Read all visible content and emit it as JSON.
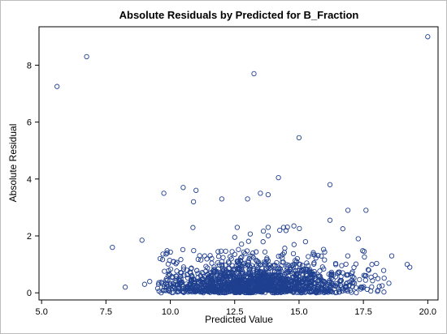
{
  "chart_data": {
    "type": "scatter",
    "title": "Absolute Residuals by Predicted for B_Fraction",
    "xlabel": "Predicted Value",
    "ylabel": "Absolute Residual",
    "xlim": [
      4.9,
      20.4
    ],
    "ylim": [
      -0.25,
      9.35
    ],
    "xticks": [
      5.0,
      7.5,
      10.0,
      12.5,
      15.0,
      17.5,
      20.0
    ],
    "xtick_labels": [
      "5.0",
      "7.5",
      "10.0",
      "12.5",
      "15.0",
      "17.5",
      "20.0"
    ],
    "yticks": [
      0,
      2,
      4,
      6,
      8
    ],
    "ytick_labels": [
      "0",
      "2",
      "4",
      "6",
      "8"
    ],
    "marker": "open-circle",
    "marker_color": "#1f3f8f",
    "grid": false,
    "legend": "none",
    "outliers": {
      "x": [
        5.6,
        6.75,
        13.25,
        15.0,
        20.0,
        14.2,
        16.2,
        10.5,
        13.5,
        9.75,
        11.0,
        10.9,
        12.0,
        13.0,
        13.8,
        16.9,
        17.6,
        7.75,
        8.9,
        12.6,
        13.8,
        14.25,
        14.4,
        14.8,
        16.2,
        16.7,
        17.8,
        18.6,
        19.2,
        19.3,
        8.25,
        9.0,
        10.0,
        17.3,
        9.2
      ],
      "y": [
        7.25,
        8.3,
        7.7,
        5.45,
        9.0,
        4.05,
        3.8,
        3.7,
        3.5,
        3.5,
        3.6,
        3.2,
        3.3,
        3.3,
        3.45,
        2.9,
        2.9,
        1.6,
        1.85,
        2.3,
        2.3,
        2.2,
        2.3,
        2.35,
        2.55,
        2.25,
        0.55,
        1.3,
        1.0,
        0.9,
        0.2,
        0.3,
        0.3,
        1.9,
        0.4
      ]
    },
    "bulk": {
      "n": 1500,
      "x_center": 13.3,
      "x_spread": 2.0,
      "x_range": [
        9.5,
        18.5
      ],
      "y_typical_max": 1.5,
      "y_sparse_max": 2.4
    }
  },
  "colors": {
    "marker": "#1f3f8f",
    "axis": "#000000",
    "frame": "#bcbcbc"
  }
}
